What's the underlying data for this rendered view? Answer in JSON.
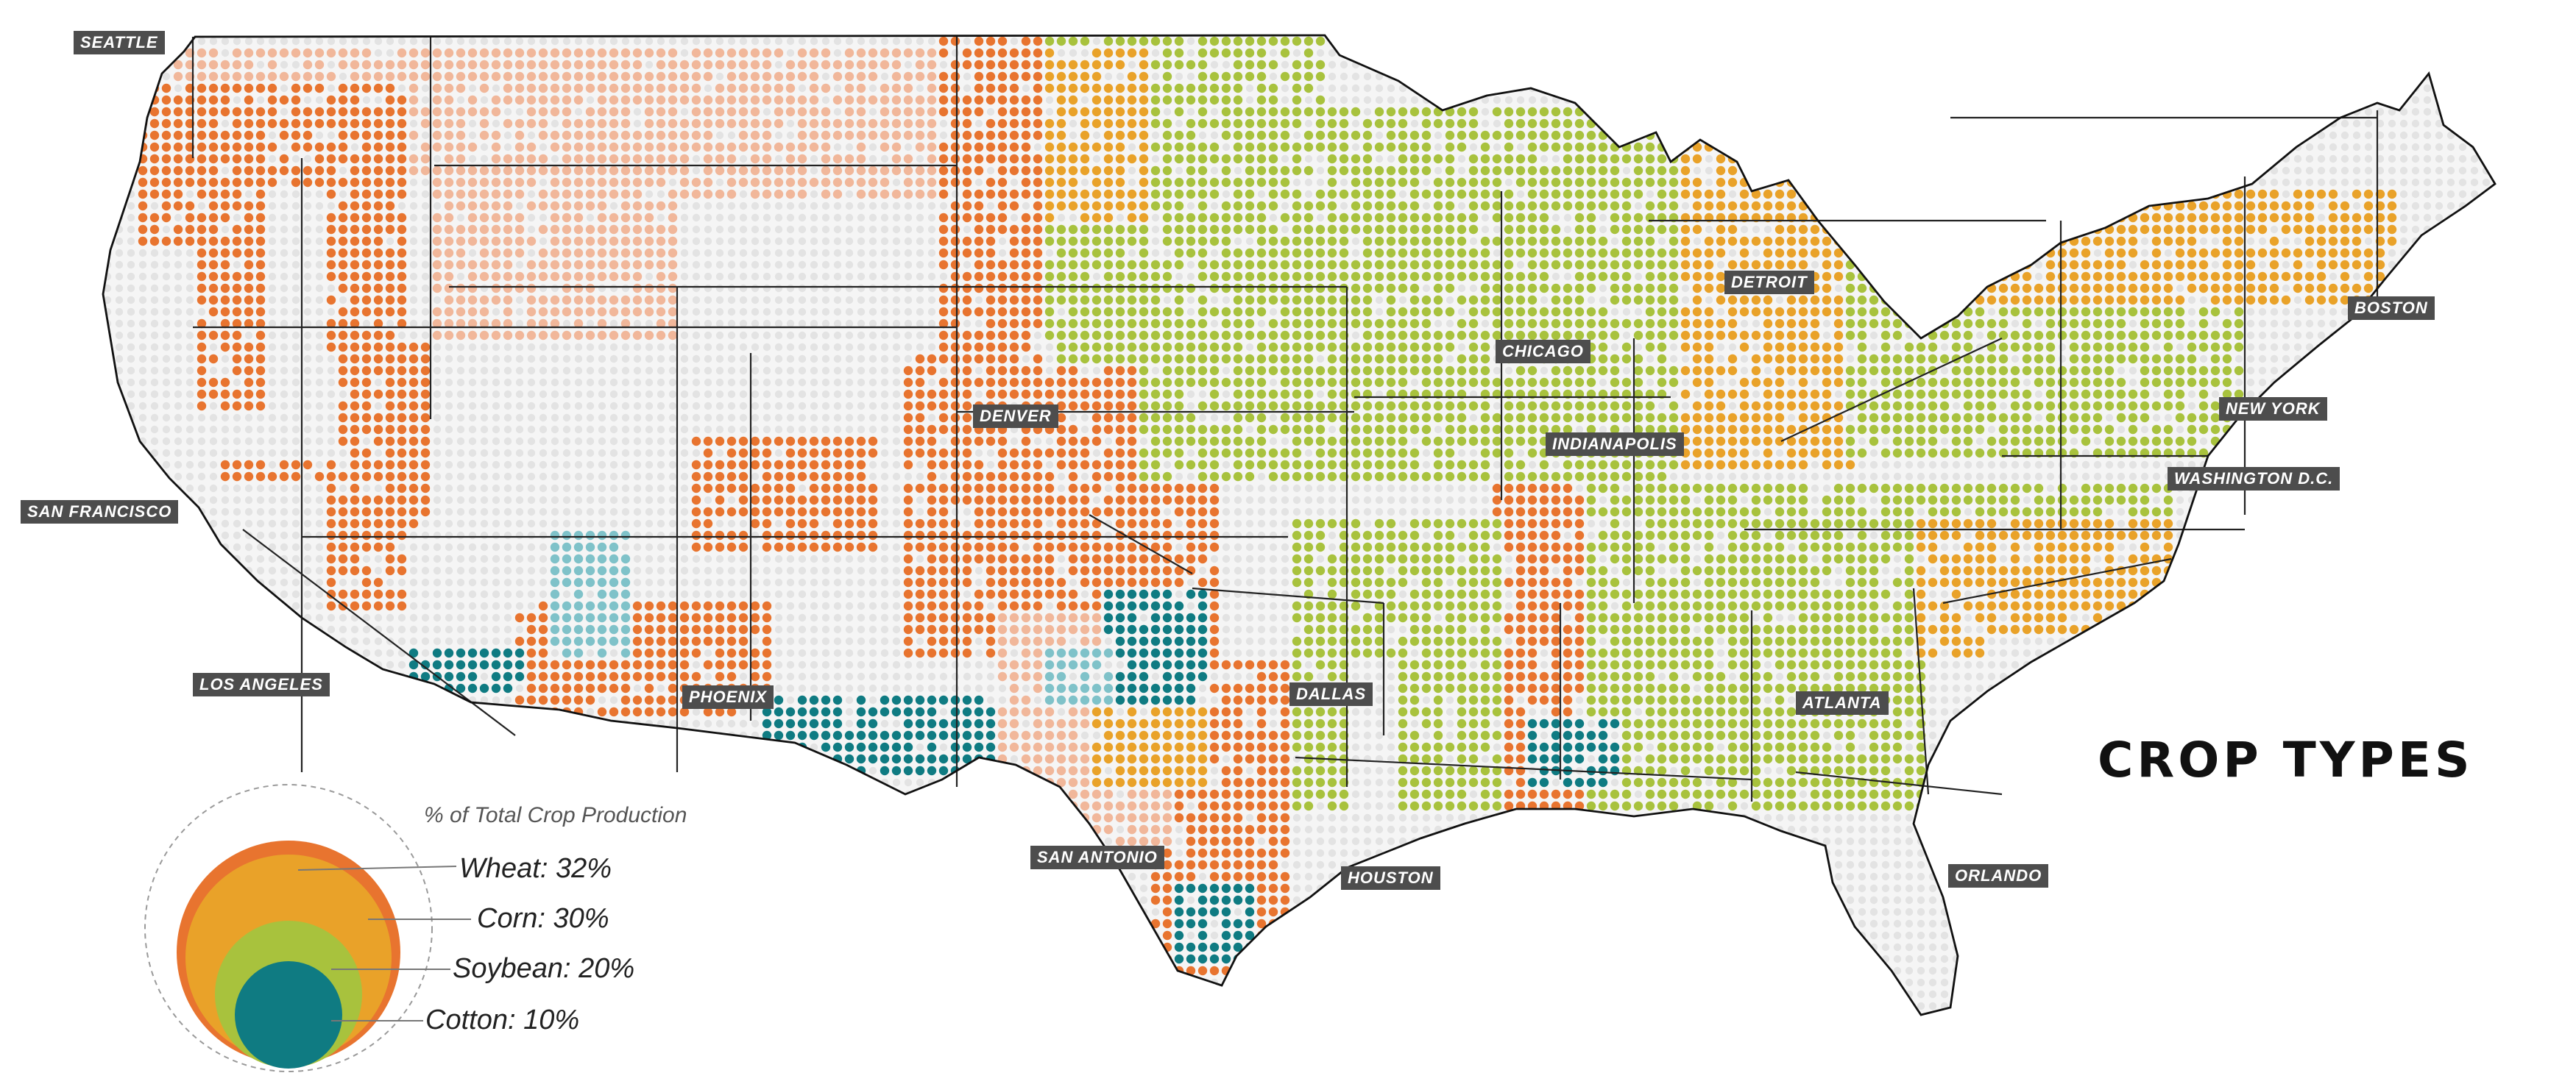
{
  "title": "CROP TYPES",
  "legend": {
    "title": "% of Total Crop Production",
    "items": [
      {
        "label": "Wheat: 32%",
        "crop": "Wheat",
        "percent": 32,
        "color": "#e8742f"
      },
      {
        "label": "Corn: 30%",
        "crop": "Corn",
        "percent": 30,
        "color": "#e9a229"
      },
      {
        "label": "Soybean: 20%",
        "crop": "Soybean",
        "percent": 20,
        "color": "#a8c23d"
      },
      {
        "label": "Cotton: 10%",
        "crop": "Cotton",
        "percent": 10,
        "color": "#0f7b82"
      }
    ]
  },
  "cities": [
    {
      "id": "seattle",
      "label": "SEATTLE"
    },
    {
      "id": "san-francisco",
      "label": "SAN FRANCISCO"
    },
    {
      "id": "los-angeles",
      "label": "LOS ANGELES"
    },
    {
      "id": "phoenix",
      "label": "PHOENIX"
    },
    {
      "id": "denver",
      "label": "DENVER"
    },
    {
      "id": "san-antonio",
      "label": "SAN ANTONIO"
    },
    {
      "id": "dallas",
      "label": "DALLAS"
    },
    {
      "id": "houston",
      "label": "HOUSTON"
    },
    {
      "id": "chicago",
      "label": "CHICAGO"
    },
    {
      "id": "indianapolis",
      "label": "INDIANAPOLIS"
    },
    {
      "id": "detroit",
      "label": "DETROIT"
    },
    {
      "id": "atlanta",
      "label": "ATLANTA"
    },
    {
      "id": "orlando",
      "label": "ORLANDO"
    },
    {
      "id": "washington-dc",
      "label": "WASHINGTON D.C."
    },
    {
      "id": "new-york",
      "label": "NEW YORK"
    },
    {
      "id": "boston",
      "label": "BOSTON"
    }
  ],
  "colors": {
    "wheat": "#e8742f",
    "wheat_light": "#f1b79a",
    "corn": "#e9a229",
    "soybean": "#a8c23d",
    "cotton": "#0f7b82",
    "cotton_light": "#7fc2c9",
    "no_data": "#e3e3e3",
    "label_bg": "#4d4d4d"
  }
}
